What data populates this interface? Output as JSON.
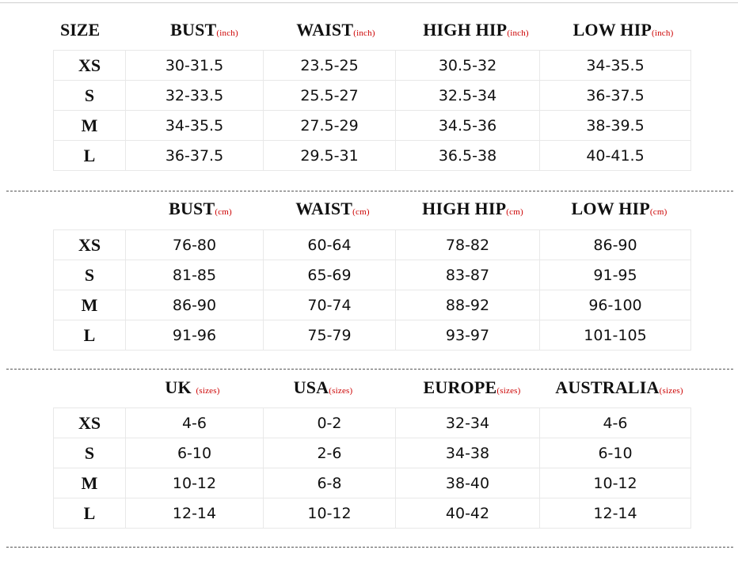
{
  "title": "SIZE",
  "sections": [
    {
      "headers": [
        {
          "label": "BUST",
          "unit": "(inch)"
        },
        {
          "label": "WAIST",
          "unit": "(inch)"
        },
        {
          "label": "HIGH HIP",
          "unit": "(inch)"
        },
        {
          "label": "LOW HIP",
          "unit": "(inch)"
        }
      ],
      "rows": [
        {
          "size": "XS",
          "values": [
            "30-31.5",
            "23.5-25",
            "30.5-32",
            "34-35.5"
          ]
        },
        {
          "size": "S",
          "values": [
            "32-33.5",
            "25.5-27",
            "32.5-34",
            "36-37.5"
          ]
        },
        {
          "size": "M",
          "values": [
            "34-35.5",
            "27.5-29",
            "34.5-36",
            "38-39.5"
          ]
        },
        {
          "size": "L",
          "values": [
            "36-37.5",
            "29.5-31",
            "36.5-38",
            "40-41.5"
          ]
        }
      ]
    },
    {
      "headers": [
        {
          "label": "BUST",
          "unit": "(cm)"
        },
        {
          "label": "WAIST",
          "unit": "(cm)"
        },
        {
          "label": "HIGH HIP",
          "unit": "(cm)"
        },
        {
          "label": "LOW HIP",
          "unit": "(cm)"
        }
      ],
      "rows": [
        {
          "size": "XS",
          "values": [
            "76-80",
            "60-64",
            "78-82",
            "86-90"
          ]
        },
        {
          "size": "S",
          "values": [
            "81-85",
            "65-69",
            "83-87",
            "91-95"
          ]
        },
        {
          "size": "M",
          "values": [
            "86-90",
            "70-74",
            "88-92",
            "96-100"
          ]
        },
        {
          "size": "L",
          "values": [
            "91-96",
            "75-79",
            "93-97",
            "101-105"
          ]
        }
      ]
    },
    {
      "headers": [
        {
          "label": "UK ",
          "unit": "(sizes)"
        },
        {
          "label": "USA",
          "unit": "(sizes)"
        },
        {
          "label": "EUROPE",
          "unit": "(sizes)"
        },
        {
          "label": "AUSTRALIA",
          "unit": "(sizes)"
        }
      ],
      "rows": [
        {
          "size": "XS",
          "values": [
            "4-6",
            "0-2",
            "32-34",
            "4-6"
          ]
        },
        {
          "size": "S",
          "values": [
            "6-10",
            "2-6",
            "34-38",
            "6-10"
          ]
        },
        {
          "size": "M",
          "values": [
            "10-12",
            "6-8",
            "38-40",
            "10-12"
          ]
        },
        {
          "size": "L",
          "values": [
            "12-14",
            "10-12",
            "40-42",
            "12-14"
          ]
        }
      ]
    }
  ]
}
